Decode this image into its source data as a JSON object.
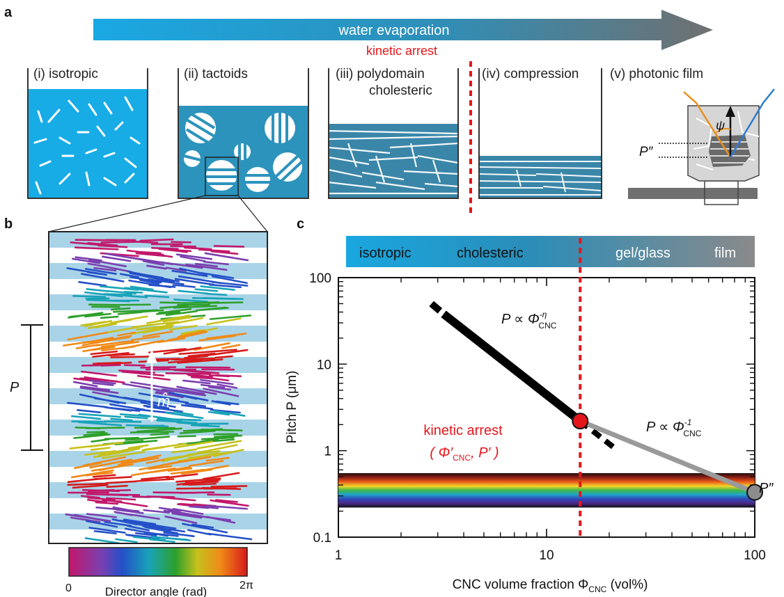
{
  "panel_a": {
    "label": "a",
    "arrow_text": "water evaporation",
    "kinetic_arrest": "kinetic arrest",
    "stages": [
      {
        "label_line1": "(i) isotropic",
        "label_line2": ""
      },
      {
        "label_line1": "(ii) tactoids",
        "label_line2": ""
      },
      {
        "label_line1": "(iii) polydomain",
        "label_line2": "cholesteric"
      },
      {
        "label_line1": "(iv) compression",
        "label_line2": ""
      },
      {
        "label_line1": "(v) photonic film",
        "label_line2": ""
      }
    ],
    "psi_symbol": "ψ",
    "p_double_prime": "P″"
  },
  "panel_b": {
    "label": "b",
    "pitch_label": "P",
    "m_hat": "m̂",
    "colorbar_label": "Director angle (rad)",
    "colorbar_min": "0",
    "colorbar_max": "2π"
  },
  "panel_c": {
    "label": "c",
    "phase_bar": [
      "isotropic",
      "cholesteric",
      "gel/glass",
      "film"
    ],
    "ylabel": "Pitch P (μm)",
    "xlabel": "CNC volume fraction Φ",
    "xlabel_sub": "CNC",
    "xlabel_unit": " (vol%)",
    "kinetic_arrest": "kinetic arrest",
    "arrest_point_label": "( Φ′",
    "arrest_point_sub": "CNC",
    "arrest_point_label2": ", P′ )",
    "law1": "P ∝ Φ",
    "law1_sup": "-η",
    "law1_sub": "CNC",
    "law2": "P ∝ Φ",
    "law2_sup": "-1",
    "law2_sub": "CNC",
    "end_label": "P″",
    "colors": {
      "arrest": "#e5161b",
      "black_line": "#000000",
      "grey_line": "#9a9a9a",
      "phase_start": "#19a7e0",
      "phase_end": "#8a8a8a"
    }
  },
  "chart_data": {
    "type": "line",
    "xscale": "log",
    "yscale": "log",
    "xlim": [
      1,
      100
    ],
    "ylim": [
      0.1,
      100
    ],
    "x_ticks": [
      "1",
      "10",
      "100"
    ],
    "y_ticks": [
      "0.1",
      "1",
      "10",
      "100"
    ],
    "xlabel": "CNC volume fraction Φ_CNC (vol%)",
    "ylabel": "Pitch P (μm)",
    "series": [
      {
        "name": "P ∝ Φ_CNC^-η",
        "style": "solid-black",
        "x": [
          3.2,
          14.5
        ],
        "y": [
          38,
          2.2
        ]
      },
      {
        "name": "",
        "style": "dashed-black-upper",
        "x": [
          2.8,
          3.2
        ],
        "y": [
          50,
          38
        ]
      },
      {
        "name": "",
        "style": "dashed-black-lower",
        "x": [
          14.5,
          22
        ],
        "y": [
          2.2,
          1.0
        ]
      },
      {
        "name": "P ∝ Φ_CNC^-1",
        "style": "solid-grey",
        "x": [
          14.5,
          100
        ],
        "y": [
          2.2,
          0.33
        ]
      }
    ],
    "points": [
      {
        "name": "kinetic arrest",
        "x": 14.5,
        "y": 2.2,
        "color": "#e5161b"
      },
      {
        "name": "P″",
        "x": 100,
        "y": 0.33,
        "color": "#8c8c8c"
      }
    ],
    "vline_x": 14.5,
    "visible_band_y": [
      0.22,
      0.55
    ]
  }
}
